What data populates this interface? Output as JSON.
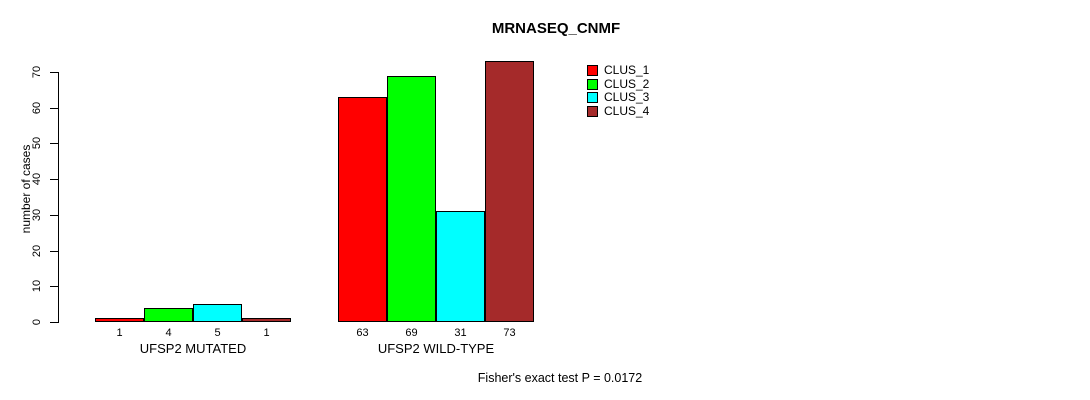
{
  "title": "MRNASEQ_CNMF",
  "chart_data": {
    "type": "bar",
    "title": "MRNASEQ_CNMF",
    "xlabel": "",
    "ylabel": "number of cases",
    "ylim": [
      0,
      70
    ],
    "yticks": [
      0,
      10,
      20,
      30,
      40,
      50,
      60,
      70
    ],
    "grid": false,
    "legend_position": "top-right",
    "bar_border_color": "#000000",
    "categories": [
      "UFSP2 MUTATED",
      "UFSP2 WILD-TYPE"
    ],
    "series": [
      {
        "name": "CLUS_1",
        "color": "#FF0000",
        "values": [
          1,
          63
        ]
      },
      {
        "name": "CLUS_2",
        "color": "#00FF00",
        "values": [
          4,
          69
        ]
      },
      {
        "name": "CLUS_3",
        "color": "#00FFFF",
        "values": [
          5,
          31
        ]
      },
      {
        "name": "CLUS_4",
        "color": "#A52A2A",
        "values": [
          1,
          73
        ]
      }
    ],
    "bar_value_labels": [
      [
        1,
        4,
        5,
        1
      ],
      [
        63,
        69,
        31,
        73
      ]
    ],
    "annotation": "Fisher's exact test P = 0.0172"
  }
}
